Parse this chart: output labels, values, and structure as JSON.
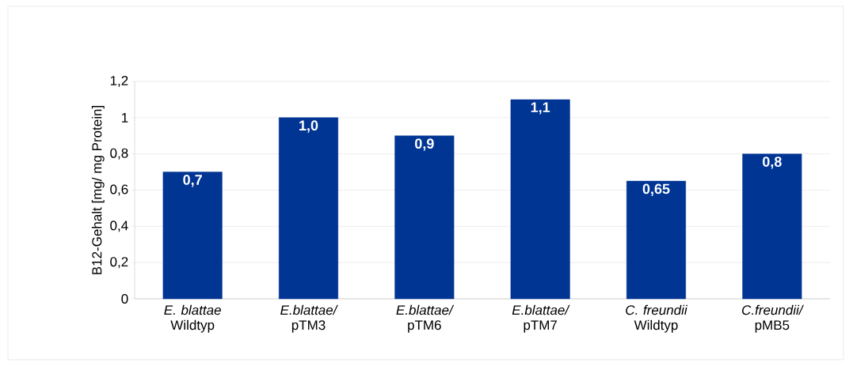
{
  "chart_data": {
    "type": "bar",
    "ylabel": "B12-Gehalt [mg/ mg Protein]",
    "categories": [
      "*E. blattae* Wildtyp",
      "*E.blattae/* pTM3",
      "*E.blattae/* pTM6",
      "*E.blattae/* pTM7",
      "*C. freundii* Wildtyp",
      "*C.freundii/* pMB5"
    ],
    "values": [
      0.7,
      1.0,
      0.9,
      1.1,
      0.65,
      0.8
    ],
    "value_labels": [
      "0,7",
      "1,0",
      "0,9",
      "1,1",
      "0,65",
      "0,8"
    ],
    "color": "#003594",
    "ylim": [
      0,
      1.2
    ],
    "yticks": [
      0,
      {
        "value": 0.2,
        "label": "0,2"
      },
      {
        "value": 0.4,
        "label": "0,4"
      },
      {
        "value": 0.6,
        "label": "0,6"
      },
      {
        "value": 0.8,
        "label": "0,8"
      },
      1,
      {
        "value": 1.2,
        "label": "1,2"
      }
    ],
    "grid": "y"
  }
}
